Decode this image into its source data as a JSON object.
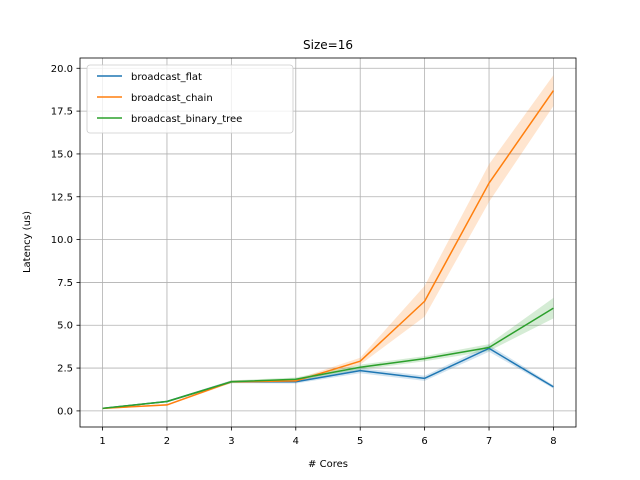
{
  "chart_data": {
    "type": "line",
    "title": "Size=16",
    "xlabel": "# Cores",
    "ylabel": "Latency (us)",
    "x": [
      1,
      2,
      3,
      4,
      5,
      6,
      7,
      8
    ],
    "xlim": [
      0.65,
      8.35
    ],
    "ylim": [
      -0.94,
      20.6
    ],
    "xticks": [
      1,
      2,
      3,
      4,
      5,
      6,
      7,
      8
    ],
    "yticks": [
      0.0,
      2.5,
      5.0,
      7.5,
      10.0,
      12.5,
      15.0,
      17.5,
      20.0
    ],
    "ytick_labels": [
      "0.0",
      "2.5",
      "5.0",
      "7.5",
      "10.0",
      "12.5",
      "15.0",
      "17.5",
      "20.0"
    ],
    "grid": true,
    "legend_position": "top-left",
    "series": [
      {
        "name": "broadcast_flat",
        "color": "#1f77b4",
        "values": [
          0.15,
          0.55,
          1.7,
          1.7,
          2.35,
          1.9,
          3.65,
          1.4
        ],
        "lower": [
          0.12,
          0.5,
          1.62,
          1.6,
          2.2,
          1.75,
          3.45,
          1.3
        ],
        "upper": [
          0.18,
          0.6,
          1.78,
          1.8,
          2.5,
          2.05,
          3.85,
          1.5
        ]
      },
      {
        "name": "broadcast_chain",
        "color": "#ff7f0e",
        "values": [
          0.15,
          0.35,
          1.7,
          1.75,
          2.9,
          6.4,
          13.3,
          18.7
        ],
        "lower": [
          0.12,
          0.3,
          1.62,
          1.65,
          2.7,
          5.5,
          12.2,
          17.8
        ],
        "upper": [
          0.18,
          0.4,
          1.78,
          1.85,
          3.1,
          7.3,
          14.4,
          19.6
        ]
      },
      {
        "name": "broadcast_binary_tree",
        "color": "#2ca02c",
        "values": [
          0.15,
          0.55,
          1.7,
          1.85,
          2.55,
          3.05,
          3.7,
          6.0
        ],
        "lower": [
          0.12,
          0.5,
          1.62,
          1.75,
          2.4,
          2.9,
          3.5,
          5.4
        ],
        "upper": [
          0.18,
          0.6,
          1.78,
          1.95,
          2.7,
          3.2,
          3.9,
          6.6
        ]
      }
    ]
  }
}
